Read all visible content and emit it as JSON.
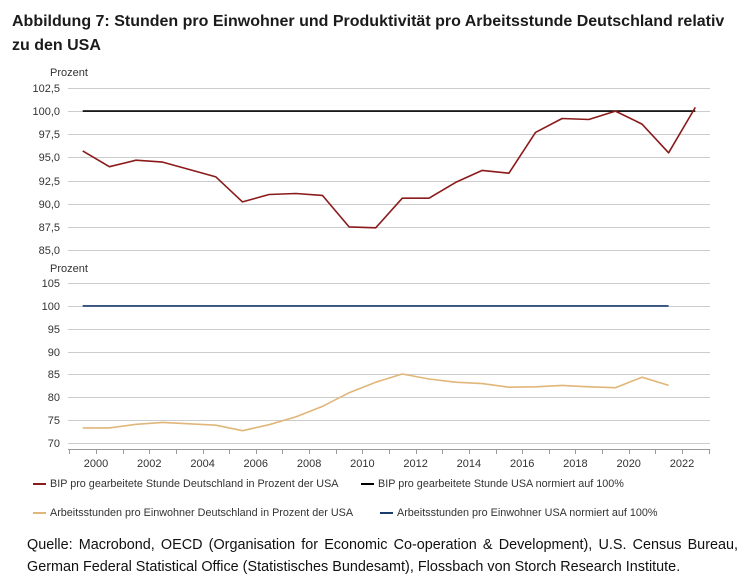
{
  "chart_data": {
    "type": "line",
    "title": "Abbildung 7: Stunden pro Einwohner und Produktivität pro Arbeitsstunde Deutschland relativ zu den USA",
    "x": [
      1999,
      2000,
      2001,
      2002,
      2003,
      2004,
      2005,
      2006,
      2007,
      2008,
      2009,
      2010,
      2011,
      2012,
      2013,
      2014,
      2015,
      2016,
      2017,
      2018,
      2019,
      2020,
      2021,
      2022
    ],
    "xlim": [
      1999,
      2023
    ],
    "xticks": [
      2000,
      2002,
      2004,
      2006,
      2008,
      2010,
      2012,
      2014,
      2016,
      2018,
      2020,
      2022
    ],
    "grid": true,
    "legend_placement": "bottom",
    "panels": [
      {
        "ylabel": "Prozent",
        "ylim": [
          85,
          102.5
        ],
        "yticks": [
          85,
          87.5,
          90,
          92.5,
          95,
          97.5,
          100,
          102.5
        ],
        "ytick_labels": [
          "85,0",
          "87,5",
          "90,0",
          "92,5",
          "95,0",
          "97,5",
          "100,0",
          "102,5"
        ],
        "series": [
          {
            "name": "BIP pro gearbeitete Stunde Deutschland in Prozent der USA",
            "color": "#8b1a1a",
            "values": [
              95.7,
              94.0,
              94.7,
              94.5,
              93.7,
              92.9,
              90.2,
              91.0,
              91.1,
              90.9,
              87.5,
              87.4,
              90.6,
              90.6,
              92.3,
              93.6,
              93.3,
              97.7,
              99.2,
              99.1,
              100.0,
              98.6,
              95.5,
              100.4
            ]
          },
          {
            "name": "BIP pro gearbeitete Stunde USA normiert auf 100%",
            "color": "#000000",
            "values": [
              100,
              100,
              100,
              100,
              100,
              100,
              100,
              100,
              100,
              100,
              100,
              100,
              100,
              100,
              100,
              100,
              100,
              100,
              100,
              100,
              100,
              100,
              100,
              100
            ]
          }
        ]
      },
      {
        "ylabel": "Prozent",
        "ylim": [
          70,
          105
        ],
        "yticks": [
          70,
          75,
          80,
          85,
          90,
          95,
          100,
          105
        ],
        "ytick_labels": [
          "70",
          "75",
          "80",
          "85",
          "90",
          "95",
          "100",
          "105"
        ],
        "series": [
          {
            "name": "Arbeitsstunden pro Einwohner Deutschland in Prozent der USA",
            "color": "#e1b679",
            "values": [
              73.3,
              73.3,
              74.1,
              74.5,
              74.2,
              73.9,
              72.7,
              74.0,
              75.7,
              78.0,
              81.0,
              83.3,
              85.1,
              84.0,
              83.3,
              83.0,
              82.2,
              82.3,
              82.6,
              82.3,
              82.1,
              84.4,
              82.6,
              null
            ]
          },
          {
            "name": "Arbeitsstunden pro Einwohner USA normiert auf 100%",
            "color": "#1c3b6e",
            "values": [
              100,
              100,
              100,
              100,
              100,
              100,
              100,
              100,
              100,
              100,
              100,
              100,
              100,
              100,
              100,
              100,
              100,
              100,
              100,
              100,
              100,
              100,
              100,
              null
            ]
          }
        ]
      }
    ],
    "source": "Quelle: Macrobond, OECD (Organisation for Economic Co-operation & Development), U.S. Census Bureau, German Federal Statistical Office (Statistisches Bundesamt), Flossbach von Storch Research Institute."
  }
}
